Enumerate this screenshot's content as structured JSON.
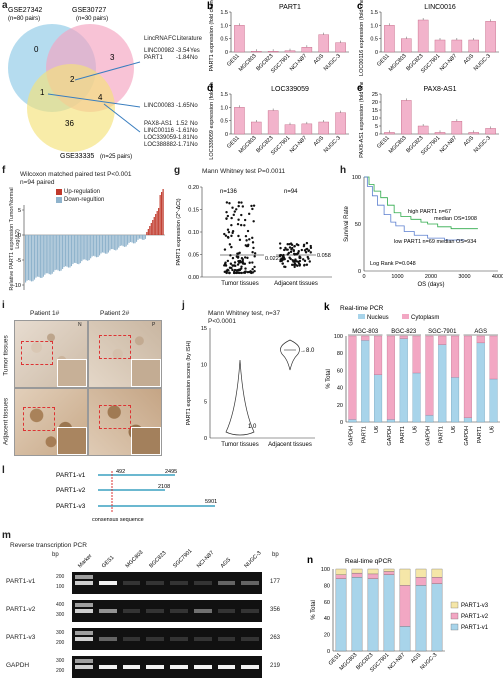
{
  "panel_a": {
    "label": "a",
    "sets": [
      {
        "name": "GSE27342",
        "n": "(n=80 pairs)",
        "color": "#8ecae6"
      },
      {
        "name": "GSE30727",
        "n": "(n=30 pairs)",
        "color": "#f4a3c0"
      },
      {
        "name": "GSE33335",
        "n": "(n=25 pairs)",
        "color": "#f5e27a"
      }
    ],
    "region_counts": [
      "0",
      "3",
      "1",
      "2",
      "4",
      "36"
    ],
    "table_headers": [
      "LincRNA",
      "FC",
      "Literature"
    ],
    "table_rows": [
      [
        "LINC00982",
        "-3.54",
        "Yes"
      ],
      [
        "PART1",
        "-1.84",
        "No"
      ],
      [
        "LINC00083",
        "-1.65",
        "No"
      ],
      [
        "PAX8-AS1",
        "1.52",
        "No"
      ],
      [
        "LINC00116",
        "-1.61",
        "No"
      ],
      [
        "LOC339059",
        "-1.81",
        "No"
      ],
      [
        "LOC388882",
        "-1.71",
        "No"
      ]
    ]
  },
  "chart_data": [
    {
      "panel": "b",
      "type": "bar",
      "title": "PART1",
      "ylabel": "PART1 expression (fold change)",
      "categories": [
        "GES1",
        "MGC803",
        "BGC823",
        "SGC7901",
        "NCI-N87",
        "AGS",
        "NUGC-3"
      ],
      "values": [
        1.0,
        0.03,
        0.03,
        0.05,
        0.18,
        0.65,
        0.35
      ],
      "ylim": [
        0,
        1.5
      ],
      "yticks": [
        "0",
        "0.5",
        "1.0",
        "1.5"
      ]
    },
    {
      "panel": "c",
      "type": "bar",
      "title": "LINC0016",
      "ylabel": "LOC00116 expression (fold change)",
      "categories": [
        "GES1",
        "MGC803",
        "BGC823",
        "SGC7901",
        "NCI-N87",
        "AGS",
        "NUGC-3"
      ],
      "values": [
        1.0,
        0.5,
        1.2,
        0.45,
        0.45,
        0.45,
        1.15
      ],
      "ylim": [
        0,
        1.5
      ],
      "yticks": [
        "0",
        "0.5",
        "1.0",
        "1.5"
      ]
    },
    {
      "panel": "d",
      "type": "bar",
      "title": "LOC339059",
      "ylabel": "LOC339059 expression (fold change)",
      "categories": [
        "GES1",
        "MGC803",
        "BGC823",
        "SGC7901",
        "NCI-N87",
        "AGS",
        "NUGC-3"
      ],
      "values": [
        1.0,
        0.45,
        0.88,
        0.35,
        0.38,
        0.45,
        0.8
      ],
      "ylim": [
        0,
        1.5
      ],
      "yticks": [
        "0",
        "0.5",
        "1.0",
        "1.5"
      ]
    },
    {
      "panel": "e",
      "type": "bar",
      "title": "PAX8-AS1",
      "ylabel": "PAX8-AS1 expression (fold change)",
      "categories": [
        "GES1",
        "MGC803",
        "BGC823",
        "SGC7901",
        "NCI-N87",
        "AGS",
        "NUGC-3"
      ],
      "values": [
        1.0,
        21.0,
        5.0,
        1.0,
        8.0,
        1.0,
        3.5
      ],
      "ylim": [
        0,
        25
      ],
      "yticks": [
        "0",
        "5",
        "10",
        "15",
        "20",
        "25"
      ]
    },
    {
      "panel": "k",
      "type": "bar",
      "title": "Real-time PCR",
      "ylabel": "% Total",
      "categories": [
        "GAPDH",
        "PART1",
        "U6",
        "GAPDH",
        "PART1",
        "U6",
        "GAPDH",
        "PART1",
        "U6",
        "GAPDH",
        "PART1",
        "U6"
      ],
      "series": [
        {
          "name": "Nucleus",
          "values": [
            3,
            95,
            55,
            3,
            97,
            57,
            8,
            90,
            52,
            5,
            92,
            50
          ]
        },
        {
          "name": "Cytoplasm",
          "values": [
            97,
            5,
            45,
            97,
            3,
            43,
            92,
            10,
            48,
            95,
            8,
            50
          ]
        }
      ],
      "ylim": [
        0,
        100
      ]
    },
    {
      "panel": "n",
      "type": "bar",
      "title": "Real-time qPCR",
      "ylabel": "% Total",
      "categories": [
        "GES1",
        "MGC803",
        "BGC823",
        "SGC7901",
        "NCI-N87",
        "AGS",
        "NUGC-3"
      ],
      "series": [
        {
          "name": "PART1-v1",
          "values": [
            88,
            90,
            88,
            93,
            30,
            80,
            82
          ]
        },
        {
          "name": "PART1-v2",
          "values": [
            5,
            5,
            6,
            4,
            50,
            10,
            8
          ]
        },
        {
          "name": "PART1-v3",
          "values": [
            7,
            5,
            6,
            3,
            20,
            10,
            10
          ]
        }
      ],
      "ylim": [
        0,
        100
      ]
    }
  ],
  "panel_f": {
    "label": "f",
    "stat": "Wilcoxon matched paired test P<0.001",
    "n": "n=94 paired",
    "legend_up": "Up-regulation",
    "legend_down": "Down-regultion",
    "ylabel": "Relative PART1 expression Tumor/Normal Log(Δ2)",
    "yticks": [
      "5",
      "0",
      "-5",
      "-10"
    ],
    "up_color": "#c0392b",
    "down_color": "#8fb3cc"
  },
  "panel_g": {
    "label": "g",
    "stat": "Mann Whitney test P=0.0011",
    "n_tumor": "n=136",
    "n_adj": "n=94",
    "median_tumor": "0.022",
    "median_adj": "0.058",
    "ylabel": "PART1 expression (2^-ΔCt)",
    "yticks": [
      "0.20",
      "0.15",
      "0.10",
      "0.05",
      "0.00"
    ],
    "xlabels": [
      "Tumor tissues",
      "Adjacent tissues"
    ]
  },
  "panel_h": {
    "label": "h",
    "ylabel": "Survival Rate",
    "xlabel": "OS (days)",
    "high_label": "high PART1 n=67",
    "high_median": "median OS=1908",
    "low_label": "low PART1 n=69 median OS=934",
    "logrank": "Log Rank P=0.048",
    "xticks": [
      "0",
      "1000",
      "2000",
      "3000",
      "4000"
    ],
    "yticks": [
      "100",
      "50",
      "0"
    ]
  },
  "panel_i": {
    "label": "i",
    "patients": [
      "Patient 1#",
      "Patient 2#"
    ],
    "rows": [
      "Tumor tissues",
      "Adjacent tissues"
    ],
    "corner_tags": [
      "N",
      "P"
    ]
  },
  "panel_j": {
    "label": "j",
    "stat": "Mann Whitney test, n=37",
    "p": "P<0.0001",
    "ylabel": "PART1 expression scores (by ISH)",
    "yticks": [
      "15",
      "10",
      "5",
      "0"
    ],
    "xlabels": [
      "Tumor tissues",
      "Adjacent tissues"
    ],
    "value_tumor": "1.0",
    "value_adj": "8.0"
  },
  "panel_k": {
    "label": "k",
    "lines": [
      "MGC-803",
      "BGC-823",
      "SGC-7901",
      "AGS"
    ],
    "legend": [
      "Nucleus",
      "Cytoplasm"
    ],
    "yticks": [
      "100",
      "80",
      "60",
      "40",
      "20",
      "0"
    ],
    "nucleus_color": "#a8d4ea",
    "cytoplasm_color": "#f2a7c3"
  },
  "panel_l": {
    "label": "l",
    "variants": [
      "PART1-v1",
      "PART1-v2",
      "PART1-v3"
    ],
    "positions": [
      "492",
      "2495",
      "2108",
      "5901"
    ],
    "consensus": "consensus sequence"
  },
  "panel_m": {
    "label": "m",
    "title": "Reverse transcription PCR",
    "bp_label": "bp",
    "lanes": [
      "Marker",
      "GES1",
      "MGC803",
      "BGC823",
      "SGC7901",
      "NCI-N87",
      "AGS",
      "NUGC-3"
    ],
    "rows": [
      {
        "name": "PART1-v1",
        "markers": [
          "200",
          "100"
        ],
        "size": "177"
      },
      {
        "name": "PART1-v2",
        "markers": [
          "400",
          "300"
        ],
        "size": "356"
      },
      {
        "name": "PART1-v3",
        "markers": [
          "300",
          "200"
        ],
        "size": "263"
      },
      {
        "name": "GAPDH",
        "markers": [
          "300",
          "200"
        ],
        "size": "219"
      }
    ]
  },
  "panel_n": {
    "label": "n",
    "legend": [
      "PART1-v3",
      "PART1-v2",
      "PART1-v1"
    ],
    "yticks": [
      "100",
      "80",
      "60",
      "40",
      "20",
      "0"
    ],
    "colors": [
      "#f5e6a8",
      "#f2a7c3",
      "#a8d4ea"
    ]
  },
  "labels": {
    "b": "b",
    "c": "c",
    "d": "d",
    "e": "e"
  }
}
